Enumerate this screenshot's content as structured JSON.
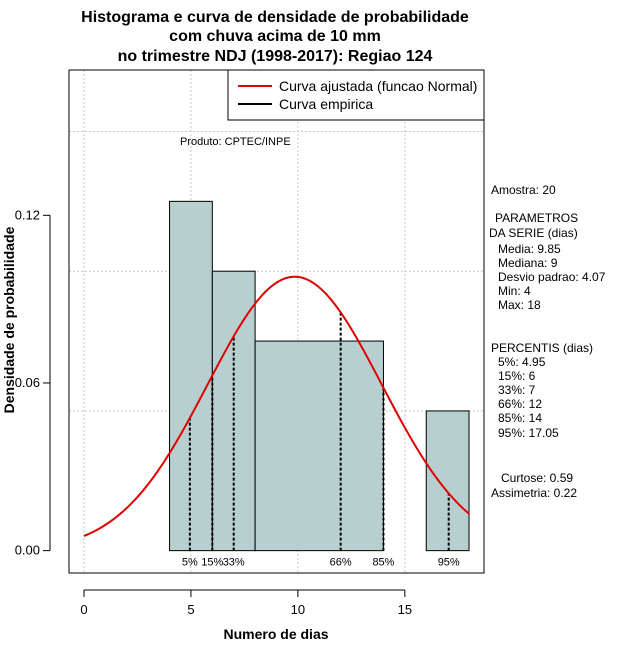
{
  "chart_data": {
    "type": "bar",
    "title": [
      "Histograma e curva de densidade de probabilidade",
      "com chuva acima de 10 mm",
      "no trimestre NDJ (1998-2017): Regiao 124"
    ],
    "xlabel": "Numero de dias",
    "ylabel": "Densidade de probabilidade",
    "xlim": [
      -0.7,
      18.7
    ],
    "ylim": [
      -0.008,
      0.172
    ],
    "xticks": [
      0,
      5,
      10,
      15
    ],
    "xtick_labels": [
      "0",
      "5",
      "10",
      "15"
    ],
    "yticks": [
      0.0,
      0.06,
      0.12
    ],
    "ytick_labels": [
      "0.00",
      "0.06",
      "0.12"
    ],
    "grid_x": [
      0,
      5,
      10,
      15
    ],
    "grid_y": [
      0.05,
      0.1,
      0.15
    ],
    "bins": [
      {
        "x0": 4,
        "x1": 6,
        "density": 0.125
      },
      {
        "x0": 6,
        "x1": 8,
        "density": 0.1
      },
      {
        "x0": 8,
        "x1": 14,
        "density": 0.075
      },
      {
        "x0": 14,
        "x1": 16,
        "density": 0.0
      },
      {
        "x0": 16,
        "x1": 18,
        "density": 0.05
      }
    ],
    "bar_color": "#b8cfcf",
    "curve": {
      "name": "Curva ajustada (funcao Normal)",
      "color": "#e00000",
      "mean": 9.85,
      "sd": 4.07,
      "x_range": [
        0,
        18
      ]
    },
    "percentile_lines": [
      {
        "label": "5%",
        "x": 4.95
      },
      {
        "label": "15%",
        "x": 6
      },
      {
        "label": "33%",
        "x": 7
      },
      {
        "label": "66%",
        "x": 12
      },
      {
        "label": "85%",
        "x": 14
      },
      {
        "label": "95%",
        "x": 17.05
      }
    ],
    "legend": {
      "placement": "top-right",
      "entries": [
        {
          "label": "Curva ajustada (funcao Normal)",
          "color": "#e00000"
        },
        {
          "label": "Curva empirica",
          "color": "#000000"
        }
      ]
    },
    "annotation": "Produto: CPTEC/INPE"
  },
  "stats_panel": {
    "amostra": "Amostra: 20",
    "param_header_1": "PARAMETROS",
    "param_header_2": "DA SERIE (dias)",
    "params": [
      "Media: 9.85",
      "Mediana: 9",
      "Desvio padrao: 4.07",
      "Min: 4",
      "Max: 18"
    ],
    "percentis_header": "PERCENTIS (dias)",
    "percentis": [
      "5%: 4.95",
      "15%: 6",
      "33%: 7",
      "66%: 12",
      "85%: 14",
      "95%: 17.05"
    ],
    "curtose": "Curtose: 0.59",
    "assimetria": "Assimetria: 0.22"
  }
}
